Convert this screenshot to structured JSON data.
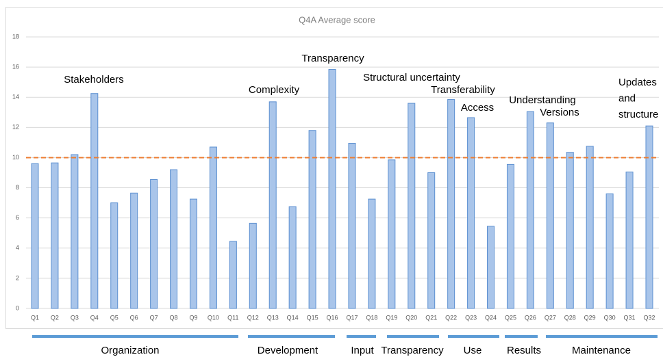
{
  "chart_data": {
    "type": "bar",
    "title": "Q4A Average score",
    "categories": [
      "Q1",
      "Q2",
      "Q3",
      "Q4",
      "Q5",
      "Q6",
      "Q7",
      "Q8",
      "Q9",
      "Q10",
      "Q11",
      "Q12",
      "Q13",
      "Q14",
      "Q15",
      "Q16",
      "Q17",
      "Q18",
      "Q19",
      "Q20",
      "Q21",
      "Q22",
      "Q23",
      "Q24",
      "Q25",
      "Q26",
      "Q27",
      "Q28",
      "Q29",
      "Q30",
      "Q31",
      "Q32"
    ],
    "values": [
      9.6,
      9.65,
      10.2,
      14.25,
      7.0,
      7.65,
      8.55,
      9.2,
      7.25,
      10.7,
      4.45,
      5.65,
      13.7,
      6.75,
      11.8,
      15.85,
      10.95,
      7.25,
      9.85,
      13.6,
      9.0,
      13.85,
      12.65,
      5.45,
      9.55,
      13.05,
      12.3,
      10.35,
      10.75,
      7.6,
      9.05,
      12.1
    ],
    "color": "#a9c5ea",
    "edge_color": "#5b8fd0",
    "ylim": [
      0,
      18
    ],
    "yticks": [
      0,
      2,
      4,
      6,
      8,
      10,
      12,
      14,
      16,
      18
    ],
    "grid": true,
    "reference_line": {
      "value": 10,
      "color": "#ed7d31"
    },
    "annotations": [
      [
        "Stakeholders"
      ],
      [
        "Complexity"
      ],
      [
        "Transparency"
      ],
      [
        "Structural uncertainty"
      ],
      [
        "Transferability"
      ],
      [
        "Access"
      ],
      [
        "Understanding"
      ],
      [
        "Versions"
      ],
      [
        "Updates",
        "and",
        "structure"
      ]
    ],
    "groups": [
      "Organization",
      "Development",
      "Input",
      "Transparency",
      "Use",
      "Results",
      "Maintenance"
    ],
    "group_color": "#5b9bd5"
  }
}
